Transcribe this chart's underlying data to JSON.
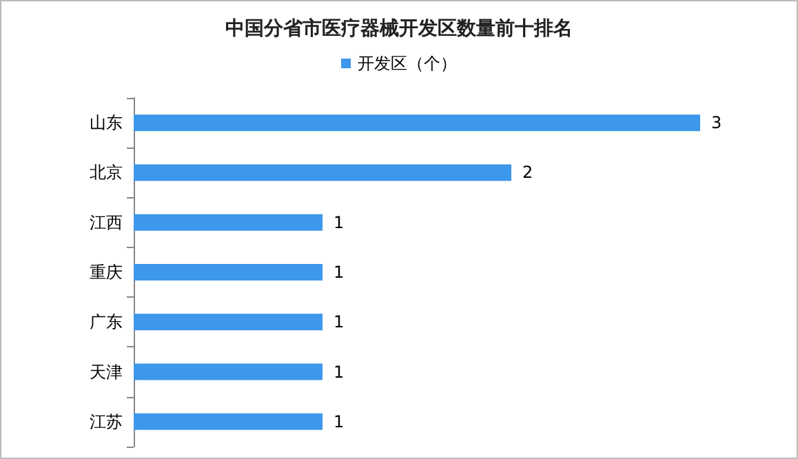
{
  "chart_data": {
    "type": "bar",
    "orientation": "horizontal",
    "title": "中国分省市医疗器械开发区数量前十排名",
    "categories": [
      "山东",
      "北京",
      "江西",
      "重庆",
      "广东",
      "天津",
      "江苏"
    ],
    "series": [
      {
        "name": "开发区（个）",
        "color": "#3d97ea",
        "values": [
          3,
          2,
          1,
          1,
          1,
          1,
          1
        ]
      }
    ],
    "data_labels": true,
    "legend": "top"
  }
}
